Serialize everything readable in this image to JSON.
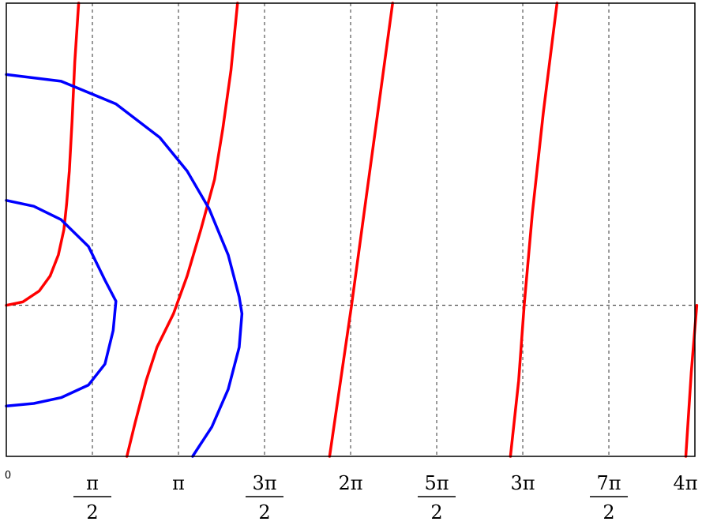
{
  "chart_data": {
    "type": "line",
    "title": "",
    "xlabel": "",
    "ylabel": "",
    "x_unit": "radians",
    "xlim": [
      0,
      12.566
    ],
    "ylim": [
      -1.8,
      3.6
    ],
    "grid": "dashed vertical lines at each pi/2 multiple; dashed horizontal line at y = 0",
    "tick_labels": [
      {
        "id": "zero",
        "text": "0",
        "x": 0
      },
      {
        "id": "pi_half",
        "num": "π",
        "den": "2",
        "x": 1.5708
      },
      {
        "id": "pi",
        "text": "π",
        "x": 3.1416
      },
      {
        "id": "three_pi_half",
        "num": "3π",
        "den": "2",
        "x": 4.7124
      },
      {
        "id": "two_pi",
        "text": "2π",
        "x": 6.2832
      },
      {
        "id": "five_pi_half",
        "num": "5π",
        "den": "2",
        "x": 7.854
      },
      {
        "id": "three_pi",
        "text": "3π",
        "x": 9.4248
      },
      {
        "id": "seven_pi_half",
        "num": "7π",
        "den": "2",
        "x": 10.9956
      },
      {
        "id": "four_pi",
        "text": "4π",
        "x": 12.5664
      }
    ],
    "series": [
      {
        "color": "#ff0000",
        "points": [
          [
            0,
            0
          ],
          [
            0.3,
            0.04
          ],
          [
            0.6,
            0.17
          ],
          [
            0.8,
            0.35
          ],
          [
            0.95,
            0.6
          ],
          [
            1.05,
            0.9
          ],
          [
            1.1,
            1.2
          ],
          [
            1.15,
            1.6
          ],
          [
            1.2,
            2.2
          ],
          [
            1.25,
            2.9
          ],
          [
            1.32,
            3.6
          ]
        ]
      },
      {
        "color": "#ff0000",
        "points": [
          [
            2.2,
            -1.8
          ],
          [
            2.35,
            -1.4
          ],
          [
            2.55,
            -0.9
          ],
          [
            2.75,
            -0.5
          ],
          [
            3.05,
            -0.1
          ],
          [
            3.3,
            0.35
          ],
          [
            3.55,
            0.9
          ],
          [
            3.8,
            1.5
          ],
          [
            3.95,
            2.1
          ],
          [
            4.1,
            2.8
          ],
          [
            4.22,
            3.6
          ]
        ]
      },
      {
        "color": "#ff0000",
        "points": [
          [
            5.9,
            -1.8
          ],
          [
            6.1,
            -0.9
          ],
          [
            6.3,
            0
          ],
          [
            6.55,
            1.2
          ],
          [
            6.8,
            2.4
          ],
          [
            7.05,
            3.6
          ]
        ]
      },
      {
        "color": "#ff0000",
        "points": [
          [
            9.2,
            -1.8
          ],
          [
            9.35,
            -0.9
          ],
          [
            9.45,
            0
          ],
          [
            9.6,
            1.1
          ],
          [
            9.8,
            2.3
          ],
          [
            10.05,
            3.6
          ]
        ]
      },
      {
        "color": "#ff0000",
        "points": [
          [
            12.4,
            -1.8
          ],
          [
            12.5,
            -0.8
          ],
          [
            12.6,
            0
          ]
        ]
      },
      {
        "color": "#0000ff",
        "points": [
          [
            0,
            1.25
          ],
          [
            0.5,
            1.18
          ],
          [
            1.0,
            1.02
          ],
          [
            1.5,
            0.7
          ],
          [
            1.8,
            0.3
          ],
          [
            2.0,
            0.05
          ],
          [
            1.95,
            -0.3
          ],
          [
            1.8,
            -0.7
          ],
          [
            1.5,
            -0.95
          ],
          [
            1.0,
            -1.1
          ],
          [
            0.5,
            -1.17
          ],
          [
            0,
            -1.2
          ]
        ]
      },
      {
        "color": "#0000ff",
        "points": [
          [
            0,
            2.75
          ],
          [
            1.0,
            2.67
          ],
          [
            2.0,
            2.4
          ],
          [
            2.8,
            2.0
          ],
          [
            3.3,
            1.6
          ],
          [
            3.7,
            1.15
          ],
          [
            4.05,
            0.6
          ],
          [
            4.25,
            0.1
          ],
          [
            4.3,
            -0.1
          ],
          [
            4.25,
            -0.5
          ],
          [
            4.05,
            -1.0
          ],
          [
            3.75,
            -1.45
          ],
          [
            3.4,
            -1.8
          ]
        ]
      }
    ]
  }
}
